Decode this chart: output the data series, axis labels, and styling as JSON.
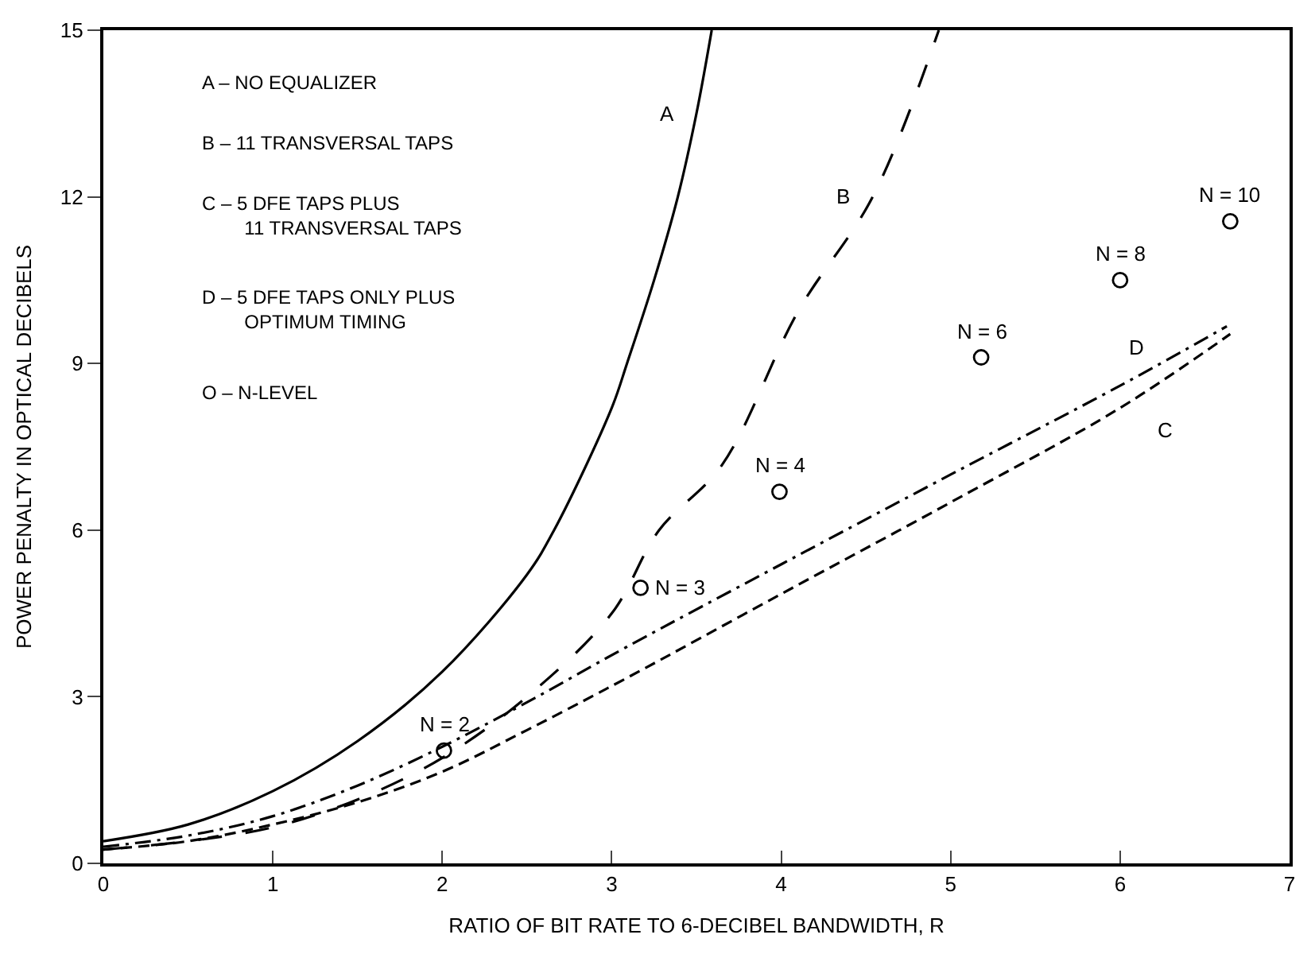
{
  "chart_data": {
    "type": "line",
    "xlabel": "RATIO OF BIT RATE TO 6-DECIBEL BANDWIDTH, R",
    "ylabel": "POWER PENALTY IN OPTICAL DECIBELS",
    "xlim": [
      0,
      7
    ],
    "xticks": [
      0,
      1,
      2,
      3,
      4,
      5,
      6,
      7
    ],
    "ylim": [
      0,
      15
    ],
    "yticks": [
      0,
      3,
      6,
      9,
      12,
      15
    ],
    "marker": "none",
    "series": [
      {
        "color": "#000000",
        "line_style": "solid",
        "x": [
          0,
          0.5,
          1,
          1.5,
          2,
          2.5,
          2.66,
          3,
          3.09,
          3.25,
          3.39,
          3.5,
          3.59
        ],
        "values": [
          0.4,
          0.7,
          1.3,
          2.2,
          3.45,
          5.2,
          6,
          8.2,
          9,
          10.5,
          12,
          13.5,
          15
        ]
      },
      {
        "color": "#000000",
        "line_style": "longdash",
        "x": [
          0,
          0.5,
          1,
          1.5,
          2,
          2.5,
          3,
          3.28,
          3.65,
          4.1,
          4.54,
          4.93
        ],
        "values": [
          0.25,
          0.4,
          0.65,
          1.15,
          1.9,
          3.0,
          4.5,
          6,
          7.17,
          9.94,
          12,
          15
        ]
      },
      {
        "color": "#000000",
        "line_style": "dashed",
        "x": [
          0,
          0.5,
          1,
          1.5,
          2,
          2.5,
          3.09,
          4,
          5,
          6,
          6.65
        ],
        "values": [
          0.25,
          0.4,
          0.7,
          1.1,
          1.65,
          2.4,
          3.34,
          4.85,
          6.5,
          8.2,
          9.53
        ]
      },
      {
        "color": "#000000",
        "line_style": "dashdot",
        "x": [
          0,
          0.5,
          1,
          1.5,
          2,
          2.5,
          3.09,
          4.01,
          5,
          6,
          6.63
        ],
        "values": [
          0.3,
          0.5,
          0.85,
          1.4,
          2.1,
          2.9,
          3.9,
          5.4,
          7.0,
          8.6,
          9.67
        ]
      },
      {
        "type": "scatter",
        "color": "#000000",
        "marker": "circle",
        "x": [
          2.01,
          3.17,
          3.99,
          5.18,
          6.0,
          6.65
        ],
        "values": [
          2.03,
          4.96,
          6.69,
          9.11,
          10.5,
          11.56
        ]
      }
    ],
    "annotations": [
      "A – NO EQUALIZER",
      "B – 11 TRANSVERSAL TAPS",
      "C – 5 DFE TAPS PLUS\n        11 TRANSVERSAL TAPS",
      "D – 5 DFE TAPS ONLY PLUS\n        OPTIMUM TIMING",
      "O – N-LEVEL",
      {
        "text": "A",
        "x": 3.5,
        "y": 13.5
      },
      {
        "text": "B",
        "x": 4.54,
        "y": 12
      },
      {
        "text": "C",
        "x": 6,
        "y": 8.2
      },
      {
        "text": "D",
        "x": 6,
        "y": 8.6
      },
      {
        "text": "N = 2",
        "x": 2.01,
        "y": 2.03
      },
      {
        "text": "N = 3",
        "x": 3.17,
        "y": 4.96
      },
      {
        "text": "N = 4",
        "x": 3.99,
        "y": 6.69
      },
      {
        "text": "N = 6",
        "x": 5.18,
        "y": 9.11
      },
      {
        "text": "N = 8",
        "x": 6.0,
        "y": 10.5
      },
      {
        "text": "N = 10",
        "x": 6.65,
        "y": 11.56
      }
    ]
  }
}
